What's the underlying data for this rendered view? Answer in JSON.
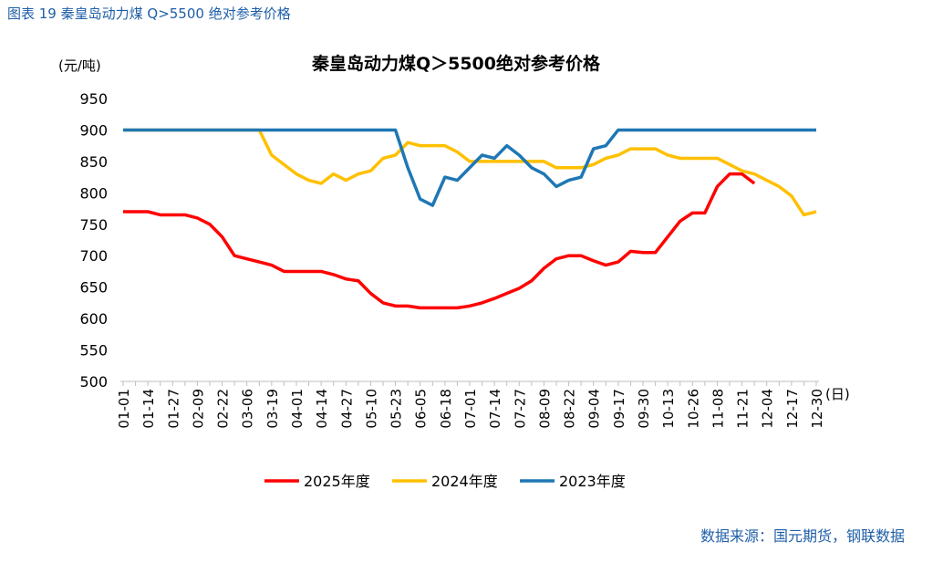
{
  "header": "图表  19 秦皇岛动力煤 Q>5500 绝对参考价格",
  "source": "数据来源：国元期货，钢联数据",
  "chart_data": {
    "type": "line",
    "title": "秦皇岛动力煤Q＞5500绝对参考价格",
    "y_label": "(元/吨)",
    "x_label": "(日)",
    "categories": [
      "01-01",
      null,
      "01-14",
      null,
      "01-27",
      null,
      "02-09",
      null,
      "02-22",
      null,
      "03-06",
      null,
      "03-19",
      null,
      "04-01",
      null,
      "04-14",
      null,
      "04-27",
      null,
      "05-10",
      null,
      "05-23",
      null,
      "06-05",
      null,
      "06-18",
      null,
      "07-01",
      null,
      "07-14",
      null,
      "07-27",
      null,
      "08-09",
      null,
      "08-22",
      null,
      "09-04",
      null,
      "09-17",
      null,
      "09-30",
      null,
      "10-13",
      null,
      "10-26",
      null,
      "11-08",
      null,
      "11-21",
      null,
      "12-04",
      null,
      "12-17",
      null,
      "12-30"
    ],
    "series": [
      {
        "name": "2025年度",
        "color": "#ff0000",
        "values": [
          770,
          770,
          770,
          765,
          765,
          765,
          760,
          750,
          730,
          700,
          695,
          690,
          685,
          675,
          675,
          675,
          675,
          670,
          663,
          660,
          640,
          625,
          620,
          620,
          617,
          617,
          617,
          617,
          620,
          625,
          632,
          640,
          648,
          660,
          680,
          695,
          700,
          700,
          692,
          685,
          690,
          707,
          705,
          705,
          730,
          755,
          768,
          768,
          810,
          830,
          830,
          815,
          null,
          null,
          null,
          null,
          null
        ]
      },
      {
        "name": "2024年度",
        "color": "#ffc000",
        "values": [
          900,
          900,
          900,
          900,
          900,
          900,
          900,
          900,
          900,
          900,
          900,
          900,
          860,
          845,
          830,
          820,
          815,
          830,
          820,
          830,
          835,
          855,
          860,
          880,
          875,
          875,
          875,
          865,
          850,
          850,
          850,
          850,
          850,
          850,
          850,
          840,
          840,
          840,
          845,
          855,
          860,
          870,
          870,
          870,
          860,
          855,
          855,
          855,
          855,
          845,
          835,
          830,
          820,
          810,
          795,
          765,
          770
        ]
      },
      {
        "name": "2023年度",
        "color": "#1f77b4",
        "values": [
          900,
          900,
          900,
          900,
          900,
          900,
          900,
          900,
          900,
          900,
          900,
          900,
          900,
          900,
          900,
          900,
          900,
          900,
          900,
          900,
          900,
          900,
          900,
          840,
          790,
          780,
          825,
          820,
          840,
          860,
          855,
          875,
          860,
          840,
          830,
          810,
          820,
          825,
          870,
          875,
          900,
          900,
          900,
          900,
          900,
          900,
          900,
          900,
          900,
          900,
          900,
          900,
          900,
          900,
          900,
          900,
          900
        ]
      }
    ],
    "ylim": [
      500,
      950
    ],
    "yticks": [
      500,
      550,
      600,
      650,
      700,
      750,
      800,
      850,
      900,
      950
    ]
  }
}
